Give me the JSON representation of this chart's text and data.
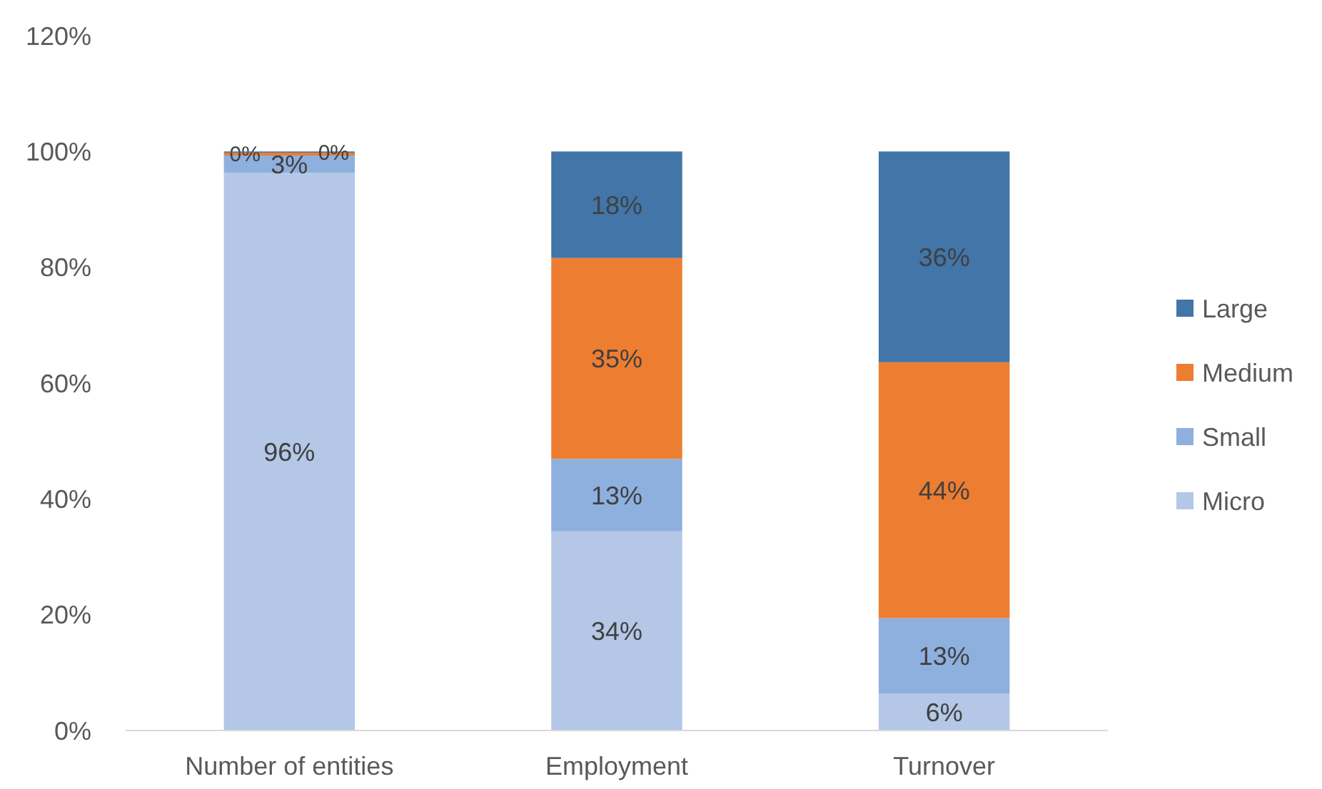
{
  "chart_data": {
    "type": "bar",
    "stacked": true,
    "categories": [
      "Number of entities",
      "Employment",
      "Turnover"
    ],
    "series": [
      {
        "name": "Micro",
        "color": "#b4c7e7",
        "values": [
          96.3,
          34.4,
          6.4
        ],
        "value_labels": [
          "96%",
          "34%",
          "6%"
        ]
      },
      {
        "name": "Small",
        "color": "#8eb0de",
        "values": [
          3.0,
          12.5,
          13.0
        ],
        "value_labels": [
          "3%",
          "13%",
          "13%"
        ]
      },
      {
        "name": "Medium",
        "color": "#ed7d31",
        "values": [
          0.5,
          34.7,
          44.2
        ],
        "value_labels": [
          "0%",
          "35%",
          "44%"
        ]
      },
      {
        "name": "Large",
        "color": "#4275a8",
        "values": [
          0.2,
          18.4,
          36.4
        ],
        "value_labels": [
          "0%",
          "18%",
          "36%"
        ]
      }
    ],
    "ylim": [
      0,
      120
    ],
    "yticks": [
      {
        "value": 0,
        "label": "0%"
      },
      {
        "value": 20,
        "label": "20%"
      },
      {
        "value": 40,
        "label": "40%"
      },
      {
        "value": 60,
        "label": "60%"
      },
      {
        "value": 80,
        "label": "80%"
      },
      {
        "value": 100,
        "label": "100%"
      },
      {
        "value": 120,
        "label": "120%"
      }
    ],
    "grid": false,
    "legend": "right"
  }
}
